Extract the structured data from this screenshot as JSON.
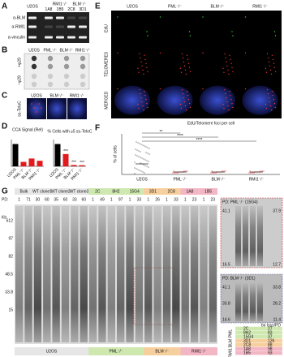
{
  "a": {
    "label": "A",
    "header": [
      "U2OS",
      "RMI1⁻/⁻",
      "BLM⁻/⁻"
    ],
    "clones": [
      "1A8",
      "1B5",
      "2C8",
      "3D1"
    ],
    "rows": [
      "α-BLM",
      "α-RMI1",
      "α-vinculin"
    ]
  },
  "b": {
    "label": "B",
    "columns": [
      "U2OS",
      "PML⁻/⁻",
      "BLM⁻/⁻",
      "RMI1⁻/⁻"
    ],
    "rows": [
      "+φ29",
      "−φ29"
    ]
  },
  "c": {
    "label": "C",
    "columns": [
      "U2OS",
      "BLM⁻/⁻",
      "RMI1⁻/⁻"
    ],
    "side": "ss-TeloC"
  },
  "d": {
    "label": "D",
    "charts": [
      {
        "title": "CCA Signal (Rel)",
        "categories": [
          "U2OS",
          "PML⁻/⁻",
          "BLM⁻/⁻",
          "RMI1⁻/⁻"
        ],
        "values": [
          1,
          0.2,
          0.35,
          0.25
        ],
        "ylim": [
          0,
          1.2
        ],
        "colors": [
          "#000000",
          "#e31a1c",
          "#e31a1c",
          "#e31a1c"
        ]
      },
      {
        "title": "% Cells with ≥5 ss-TeloC",
        "categories": [
          "U2OS",
          "PML⁻/⁻",
          "BLM⁻/⁻",
          "RMI1⁻/⁻"
        ],
        "values": [
          10,
          5.5,
          0.6,
          0.5
        ],
        "ylim": [
          0,
          12
        ],
        "colors": [
          "#000000",
          "#e31a1c",
          "#e31a1c",
          "#e31a1c"
        ],
        "stars": [
          "***",
          "***",
          "***"
        ]
      }
    ]
  },
  "e": {
    "label": "E",
    "columns": [
      "U2OS",
      "PML⁻/⁻",
      "BLM⁻/⁻",
      "RMI1⁻/⁻"
    ],
    "rows": [
      "EdU",
      "TELOMERES",
      "MERGED"
    ]
  },
  "f": {
    "label": "F",
    "title": "EdU/Telomere foci per cell",
    "ylabel": "% of cells",
    "categories": [
      "U2OS",
      "PML⁻/⁻",
      "BLM⁻/⁻",
      "RMI1⁻/⁻"
    ],
    "sig": [
      "**",
      "****",
      "****"
    ]
  },
  "g": {
    "label": "G",
    "pd_label": "PD:",
    "kb": "Kb",
    "markers": [
      "612",
      "97",
      "82",
      "48.5",
      "33.8",
      "15"
    ],
    "groups": [
      {
        "name": "U2OS",
        "color": "#e6e6e6",
        "lanes": [
          {
            "name": "Bulk",
            "pd": [
              1,
              71
            ]
          },
          {
            "name": "WT clone1",
            "pd": [
              30,
              60
            ]
          },
          {
            "name": "WT clone2",
            "pd": [
              35,
              60
            ]
          },
          {
            "name": "WT clone3",
            "pd": [
              33,
              60
            ]
          }
        ]
      },
      {
        "name": "PML⁻/⁻",
        "color": "#cfe8b0",
        "lanes": [
          {
            "name": "2C",
            "pd": [
              1,
              49
            ]
          },
          {
            "name": "8H2",
            "pd": [
              1,
              97
            ]
          },
          {
            "name": "15G4",
            "pd": [
              1,
              33
            ]
          }
        ]
      },
      {
        "name": "BLM⁻/⁻",
        "color": "#f6cf9e",
        "lanes": [
          {
            "name": "3D1",
            "pd": [
              1,
              26
            ]
          },
          {
            "name": "2C8",
            "pd": [
              1,
              33
            ]
          }
        ]
      },
      {
        "name": "RMI1⁻/⁻",
        "color": "#f3b6c4",
        "lanes": [
          {
            "name": "1A8",
            "pd": [
              1,
              23
            ]
          },
          {
            "name": "1B5",
            "pd": [
              1,
              23
            ]
          }
        ]
      }
    ],
    "insets": [
      {
        "title": "PD: PML⁻/⁻ (15G4)",
        "left": [
          "41.1",
          "16.5"
        ],
        "right": [
          "37.9",
          "12.7"
        ]
      },
      {
        "title": "PD: BLM⁻/⁻ (3D1)",
        "left": [
          "41.1",
          "33.8",
          "14.6"
        ],
        "right": [
          "33.8",
          "28.2",
          "11.4"
        ]
      }
    ],
    "table": {
      "header": "bp loss/PD",
      "groups": [
        "PML",
        "BLM",
        "RMI1"
      ],
      "rows": [
        [
          "2C",
          "27"
        ],
        [
          "8H2",
          "83"
        ],
        [
          "15G4",
          "37"
        ],
        [
          "3D1",
          "126"
        ],
        [
          "2C8",
          "88"
        ],
        [
          "1A8",
          "98"
        ],
        [
          "1B5",
          "93"
        ]
      ]
    }
  }
}
